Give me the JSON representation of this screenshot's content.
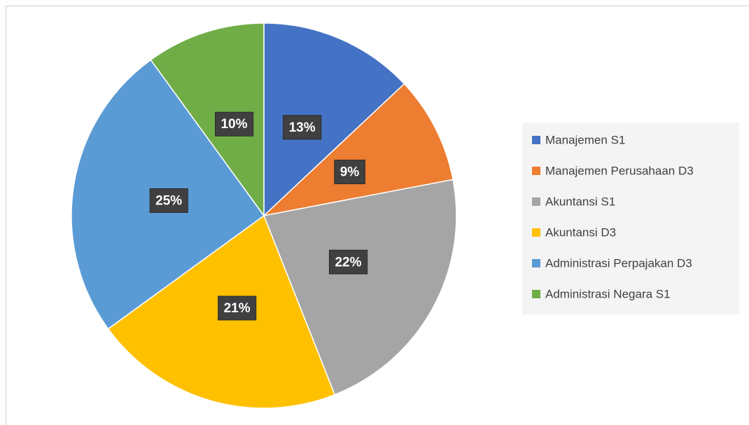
{
  "chart_data": {
    "type": "pie",
    "categories": [
      "Manajemen S1",
      "Manajemen Perusahaan D3",
      "Akuntansi S1",
      "Akuntansi D3",
      "Administrasi Perpajakan D3",
      "Administrasi Negara S1"
    ],
    "values": [
      13,
      9,
      22,
      21,
      25,
      10
    ],
    "value_labels": [
      "13%",
      "9%",
      "22%",
      "21%",
      "25%",
      "10%"
    ],
    "colors": [
      "#4472c4",
      "#ed7d31",
      "#a5a5a5",
      "#ffc000",
      "#5b9bd5",
      "#70ad47"
    ],
    "legend": "right"
  }
}
